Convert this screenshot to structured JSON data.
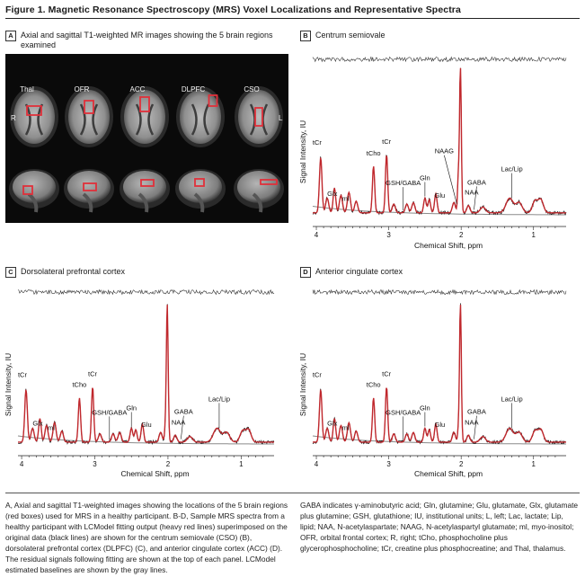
{
  "figure_title": "Figure 1. Magnetic Resonance Spectroscopy (MRS) Voxel Localizations and Representative Spectra",
  "panel_a": {
    "letter": "A",
    "title": "Axial and sagittal T1-weighted MR images showing the 5 brain regions examined",
    "regions": [
      "Thal",
      "OFR",
      "ACC",
      "DLPFC",
      "CSO"
    ],
    "side_right": "R",
    "side_left": "L"
  },
  "spectra": [
    {
      "letter": "B",
      "title": "Centrum semiovale",
      "peaks": [
        "tCr",
        "Glx",
        "ml",
        "tCho",
        "tCr",
        "GSH/GABA",
        "Gln",
        "Glu",
        "NAAG",
        "NAA",
        "GABA",
        "Lac/Lip"
      ]
    },
    {
      "letter": "C",
      "title": "Dorsolateral prefrontal cortex",
      "peaks": [
        "tCr",
        "Glx",
        "ml",
        "tCho",
        "tCr",
        "GSH/GABA",
        "Gln",
        "Glu",
        "NAA",
        "GABA",
        "Lac/Lip"
      ]
    },
    {
      "letter": "D",
      "title": "Anterior cingulate cortex",
      "peaks": [
        "tCr",
        "Glx",
        "ml",
        "tCho",
        "tCr",
        "GSH/GABA",
        "Gln",
        "Glu",
        "NAA",
        "GABA",
        "Lac/Lip"
      ]
    }
  ],
  "axis": {
    "ylabel": "Signal Intensity, IU",
    "xlabel": "Chemical Shift, ppm",
    "ticks": [
      "4",
      "3",
      "2",
      "1"
    ]
  },
  "caption_left": "A, Axial and sagittal T1-weighted images showing the locations of the 5 brain regions (red boxes) used for MRS in a healthy participant. B-D, Sample MRS spectra from a healthy participant with LCModel fitting output (heavy red lines) superimposed on the original data (black lines) are shown for the centrum semiovale (CSO) (B), dorsolateral prefrontal cortex (DLPFC) (C), and anterior cingulate cortex (ACC) (D). The residual signals following fitting are shown at the top of each panel. LCModel estimated baselines are shown by the gray lines.",
  "caption_right": "GABA indicates γ-aminobutyric acid; Gln, glutamine; Glu, glutamate, Glx, glutamate plus glutamine; GSH, glutathione; IU, institutional units; L, left; Lac, lactate; Lip, lipid; NAA, N-acetylaspartate; NAAG, N-acetylaspartyl glutamate; ml, myo-inositol; OFR, orbital frontal cortex; R, right; tCho, phosphocholine plus glycerophosphocholine; tCr, creatine plus phosphocreatine; and Thal, thalamus.",
  "colors": {
    "fit": "#c0282d",
    "data": "#111111",
    "baseline": "#8a8a8a",
    "voxel": "#e0303a"
  }
}
